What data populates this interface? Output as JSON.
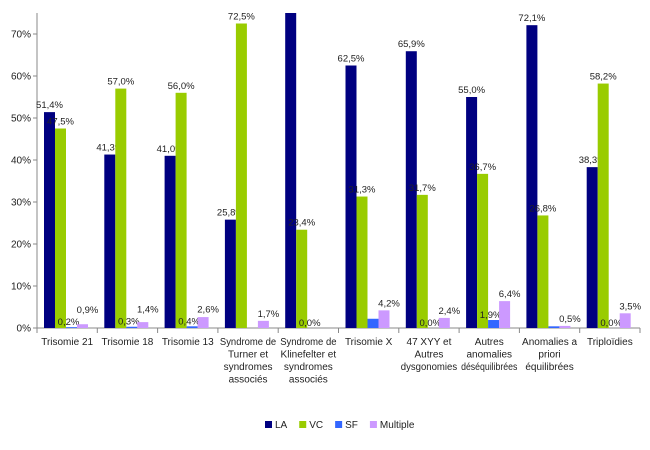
{
  "chart_data": {
    "type": "bar",
    "title": "",
    "xlabel": "",
    "ylabel": "",
    "ylim": [
      0,
      75
    ],
    "yticks": [
      0,
      10,
      20,
      30,
      40,
      50,
      60,
      70
    ],
    "ytick_labels": [
      "0%",
      "10%",
      "20%",
      "30%",
      "40%",
      "50%",
      "60%",
      "70%"
    ],
    "grid": false,
    "legend_position": "bottom",
    "categories": [
      [
        "Trisomie 21"
      ],
      [
        "Trisomie 18"
      ],
      [
        "Trisomie 13"
      ],
      [
        "Syndrome de",
        "Turner et",
        "syndromes",
        "associés"
      ],
      [
        "Syndrome de",
        "Klinefelter et",
        "syndromes",
        "associés"
      ],
      [
        "Trisomie X"
      ],
      [
        "47 XYY et",
        "Autres",
        "dysgonomies"
      ],
      [
        "Autres",
        "anomalies",
        "déséquilibrées"
      ],
      [
        "Anomalies a",
        "priori",
        "équilibrées"
      ],
      [
        "Triploïdies"
      ]
    ],
    "series": [
      {
        "name": "LA",
        "color": "#000080",
        "values": [
          51.4,
          41.3,
          41.0,
          25.8,
          76.6,
          62.5,
          65.9,
          55.0,
          72.1,
          38.3
        ],
        "labels": [
          "51,4%",
          "41,3%",
          "41,0%",
          "25,8%",
          "",
          "62,5%",
          "65,9%",
          "55,0%",
          "72,1%",
          "38,3%"
        ]
      },
      {
        "name": "VC",
        "color": "#99CC00",
        "values": [
          47.5,
          57.0,
          56.0,
          72.5,
          23.4,
          31.3,
          31.7,
          36.7,
          26.8,
          58.2
        ],
        "labels": [
          "47,5%",
          "57,0%",
          "56,0%",
          "72,5%",
          "23,4%",
          "31,3%",
          "31,7%",
          "36,7%",
          "26,8%",
          "58,2%"
        ]
      },
      {
        "name": "SF",
        "color": "#3366FF",
        "values": [
          0.2,
          0.3,
          0.4,
          0,
          0.0,
          2.2,
          0.0,
          1.9,
          0.4,
          0.0
        ],
        "labels": [
          "0,2%",
          "0,3%",
          "0,4%",
          "",
          "0,0%",
          "",
          "0,0%",
          "1,9%",
          "",
          "0,0%"
        ]
      },
      {
        "name": "Multiple",
        "color": "#CC99FF",
        "values": [
          0.9,
          1.4,
          2.6,
          1.7,
          0,
          4.2,
          2.4,
          6.4,
          0.5,
          3.5
        ],
        "labels": [
          "0,9%",
          "1,4%",
          "2,6%",
          "1,7%",
          "",
          "4,2%",
          "2,4%",
          "6,4%",
          "0,5%",
          "3,5%"
        ]
      }
    ]
  }
}
